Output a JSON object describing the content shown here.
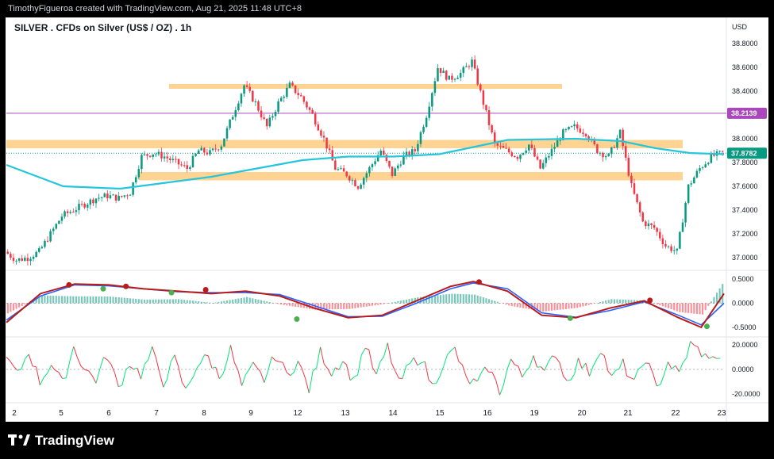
{
  "header": {
    "attribution": "TimothyFigueroa created with TradingView.com, Aug 21, 2025 11:48 UTC+8",
    "title": "SILVER . CFDs on Silver (US$ / OZ) . 1h",
    "currency": "USD"
  },
  "footer": {
    "brand": "TradingView"
  },
  "colors": {
    "up": "#089981",
    "down": "#f23645",
    "ma": "#26c6da",
    "zone": "#ffcc80",
    "resistance_line": "#ab47bc",
    "osc_fast": "#4caf50",
    "osc_slow": "#2962ff",
    "osc_bear": "#b71c1c",
    "rsi_up": "#00e676",
    "rsi_down": "#f23645"
  },
  "chart_data": [
    {
      "type": "candlestick",
      "price_axis": {
        "min": 36.9,
        "max": 38.9,
        "ticks": [
          "38.8000",
          "38.6000",
          "38.4000",
          "38.2000",
          "38.0000",
          "37.8000",
          "37.6000",
          "37.4000",
          "37.2000",
          "37.0000"
        ]
      },
      "time_labels": [
        "2",
        "5",
        "6",
        "7",
        "8",
        "9",
        "12",
        "13",
        "14",
        "15",
        "16",
        "19",
        "20",
        "21",
        "22",
        "23"
      ],
      "current_price": {
        "label": "37.8782",
        "value": 37.8782
      },
      "resistance_line": {
        "label": "38.2139",
        "value": 38.2139
      },
      "zones": [
        {
          "from": 38.43,
          "to": 38.46
        },
        {
          "from": 37.92,
          "to": 37.99
        },
        {
          "from": 37.65,
          "to": 37.72
        }
      ],
      "close_path": [
        [
          0,
          37.05
        ],
        [
          1,
          36.98
        ],
        [
          2,
          37.0
        ],
        [
          3,
          37.05
        ],
        [
          4,
          37.2
        ],
        [
          5,
          37.35
        ],
        [
          6,
          37.4
        ],
        [
          7,
          37.45
        ],
        [
          8,
          37.5
        ],
        [
          9,
          37.52
        ],
        [
          10,
          37.5
        ],
        [
          11,
          37.55
        ],
        [
          12,
          37.85
        ],
        [
          13,
          37.88
        ],
        [
          14,
          37.85
        ],
        [
          15,
          37.8
        ],
        [
          16,
          37.75
        ],
        [
          17,
          37.9
        ],
        [
          18,
          37.88
        ],
        [
          19,
          37.95
        ],
        [
          20,
          38.2
        ],
        [
          21,
          38.45
        ],
        [
          22,
          38.3
        ],
        [
          23,
          38.1
        ],
        [
          24,
          38.3
        ],
        [
          25,
          38.45
        ],
        [
          26,
          38.35
        ],
        [
          27,
          38.2
        ],
        [
          28,
          38.0
        ],
        [
          29,
          37.75
        ],
        [
          30,
          37.7
        ],
        [
          31,
          37.6
        ],
        [
          32,
          37.75
        ],
        [
          33,
          37.9
        ],
        [
          34,
          37.7
        ],
        [
          35,
          37.85
        ],
        [
          36,
          37.9
        ],
        [
          37,
          38.2
        ],
        [
          38,
          38.6
        ],
        [
          39,
          38.5
        ],
        [
          40,
          38.55
        ],
        [
          41,
          38.65
        ],
        [
          42,
          38.3
        ],
        [
          43,
          37.95
        ],
        [
          44,
          37.9
        ],
        [
          45,
          37.85
        ],
        [
          46,
          37.95
        ],
        [
          47,
          37.75
        ],
        [
          48,
          37.9
        ],
        [
          49,
          38.05
        ],
        [
          50,
          38.1
        ],
        [
          51,
          38.05
        ],
        [
          52,
          37.9
        ],
        [
          53,
          37.85
        ],
        [
          54,
          38.05
        ],
        [
          55,
          37.6
        ],
        [
          56,
          37.3
        ],
        [
          57,
          37.25
        ],
        [
          58,
          37.1
        ],
        [
          59,
          37.05
        ],
        [
          60,
          37.6
        ],
        [
          61,
          37.75
        ],
        [
          62,
          37.85
        ],
        [
          63,
          37.88
        ]
      ],
      "moving_average": [
        [
          0,
          37.78
        ],
        [
          5,
          37.6
        ],
        [
          10,
          37.58
        ],
        [
          14,
          37.63
        ],
        [
          18,
          37.68
        ],
        [
          22,
          37.75
        ],
        [
          26,
          37.82
        ],
        [
          30,
          37.85
        ],
        [
          34,
          37.85
        ],
        [
          38,
          37.87
        ],
        [
          42,
          37.95
        ],
        [
          44,
          37.99
        ],
        [
          50,
          38.0
        ],
        [
          54,
          37.98
        ],
        [
          57,
          37.92
        ],
        [
          60,
          37.88
        ],
        [
          63,
          37.87
        ]
      ]
    },
    {
      "type": "oscillator",
      "ticks": [
        "0.5000",
        "0.0000",
        "-0.5000"
      ],
      "range": [
        -0.65,
        0.65
      ],
      "fast": [
        [
          0,
          -0.4
        ],
        [
          3,
          0.2
        ],
        [
          6,
          0.4
        ],
        [
          9,
          0.38
        ],
        [
          12,
          0.3
        ],
        [
          15,
          0.25
        ],
        [
          18,
          0.2
        ],
        [
          21,
          0.25
        ],
        [
          24,
          0.15
        ],
        [
          27,
          -0.1
        ],
        [
          30,
          -0.3
        ],
        [
          33,
          -0.25
        ],
        [
          36,
          0.05
        ],
        [
          39,
          0.35
        ],
        [
          41,
          0.45
        ],
        [
          44,
          0.25
        ],
        [
          47,
          -0.25
        ],
        [
          50,
          -0.3
        ],
        [
          53,
          -0.1
        ],
        [
          56,
          0.05
        ],
        [
          59,
          -0.3
        ],
        [
          61,
          -0.5
        ],
        [
          63,
          0.2
        ]
      ],
      "slow": [
        [
          0,
          -0.35
        ],
        [
          3,
          0.15
        ],
        [
          6,
          0.38
        ],
        [
          9,
          0.36
        ],
        [
          12,
          0.3
        ],
        [
          15,
          0.24
        ],
        [
          18,
          0.22
        ],
        [
          21,
          0.22
        ],
        [
          24,
          0.18
        ],
        [
          27,
          -0.05
        ],
        [
          30,
          -0.28
        ],
        [
          33,
          -0.27
        ],
        [
          36,
          0.0
        ],
        [
          39,
          0.3
        ],
        [
          41,
          0.42
        ],
        [
          44,
          0.3
        ],
        [
          47,
          -0.2
        ],
        [
          50,
          -0.29
        ],
        [
          53,
          -0.15
        ],
        [
          56,
          0.03
        ],
        [
          59,
          -0.25
        ],
        [
          61,
          -0.45
        ],
        [
          63,
          0.0
        ]
      ],
      "cross_markers": [
        {
          "x": 5.5,
          "y": 0.38,
          "color": "#b71c1c"
        },
        {
          "x": 8.5,
          "y": 0.3,
          "color": "#4caf50"
        },
        {
          "x": 10.5,
          "y": 0.35,
          "color": "#b71c1c"
        },
        {
          "x": 14.5,
          "y": 0.22,
          "color": "#4caf50"
        },
        {
          "x": 17.5,
          "y": 0.28,
          "color": "#b71c1c"
        },
        {
          "x": 25.5,
          "y": -0.33,
          "color": "#4caf50"
        },
        {
          "x": 41.5,
          "y": 0.44,
          "color": "#b71c1c"
        },
        {
          "x": 49.5,
          "y": -0.31,
          "color": "#4caf50"
        },
        {
          "x": 56.5,
          "y": 0.06,
          "color": "#b71c1c"
        },
        {
          "x": 61.5,
          "y": -0.48,
          "color": "#4caf50"
        }
      ]
    },
    {
      "type": "line",
      "ticks": [
        "20.0000",
        "0.0000",
        "-20.0000"
      ],
      "range": [
        -25,
        25
      ],
      "values": [
        10,
        -5,
        15,
        -10,
        5,
        -12,
        18,
        0,
        -8,
        12,
        -15,
        6,
        -4,
        14,
        -10,
        8,
        -18,
        4,
        10,
        -6,
        16,
        -14,
        2,
        -8,
        12,
        -4,
        6,
        -16,
        14,
        -2,
        8,
        -10,
        20,
        -6,
        18,
        -12,
        4,
        10,
        -14,
        6,
        16,
        -8,
        -12,
        2,
        -18,
        8,
        -6,
        12,
        -4,
        14,
        -10,
        6,
        -2,
        18,
        -8,
        4,
        -12,
        10,
        -16,
        6,
        -4,
        20,
        14,
        2
      ]
    }
  ]
}
